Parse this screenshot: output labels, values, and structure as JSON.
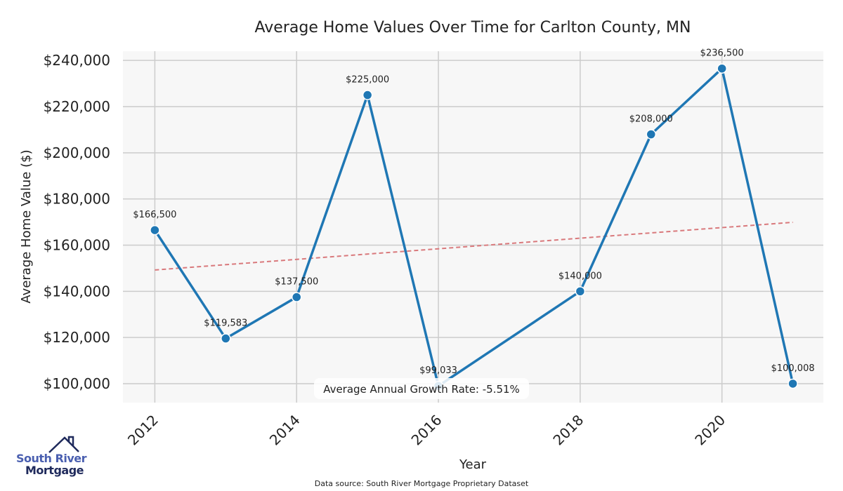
{
  "chart_data": {
    "type": "line",
    "title": "Average Home Values Over Time for Carlton County, MN",
    "xlabel": "Year",
    "ylabel": "Average Home Value ($)",
    "x": [
      2012,
      2013,
      2014,
      2015,
      2016,
      2018,
      2019,
      2020,
      2021
    ],
    "values": [
      166500,
      119583,
      137500,
      225000,
      99033,
      140000,
      208000,
      236500,
      100008
    ],
    "data_labels": [
      "$166,500",
      "$119,583",
      "$137,500",
      "$225,000",
      "$99,033",
      "$140,000",
      "$208,000",
      "$236,500",
      "$100,008"
    ],
    "xticks": [
      "2012",
      "2014",
      "2016",
      "2018",
      "2020"
    ],
    "yticks": [
      "$100,000",
      "$120,000",
      "$140,000",
      "$160,000",
      "$180,000",
      "$200,000",
      "$220,000",
      "$240,000"
    ],
    "ytick_values": [
      100000,
      120000,
      140000,
      160000,
      180000,
      200000,
      220000,
      240000
    ],
    "xtick_values": [
      2012,
      2014,
      2016,
      2018,
      2020
    ],
    "xlim": [
      2011.55,
      2021.43
    ],
    "ylim": [
      91800,
      244000
    ],
    "trend": {
      "x": [
        2012,
        2021
      ],
      "y": [
        149250,
        169900
      ],
      "color": "#d9797c"
    },
    "annotation": "Average Annual Growth Rate: -5.51%",
    "grid": true,
    "line_color": "#1f77b4"
  },
  "source": "Data source: South River Mortgage Proprietary Dataset",
  "logo": {
    "line1": "South River",
    "line2": "Mortgage"
  }
}
